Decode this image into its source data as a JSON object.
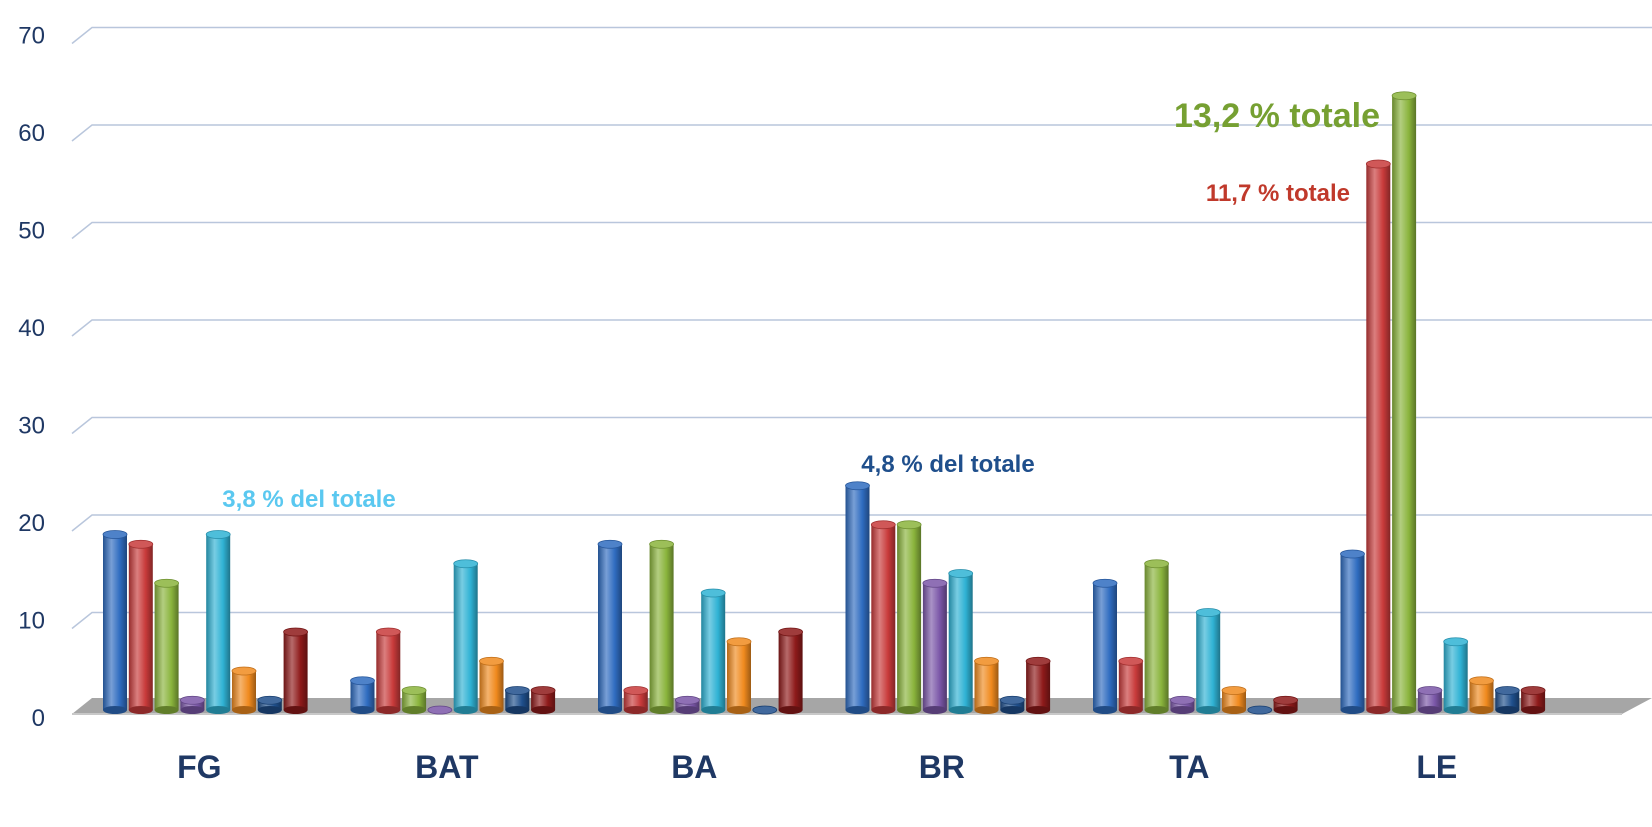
{
  "chart_data": {
    "type": "bar",
    "categories": [
      "FG",
      "BAT",
      "BA",
      "BR",
      "TA",
      "LE"
    ],
    "ylim": [
      0,
      70
    ],
    "yticks": [
      0,
      10,
      20,
      30,
      40,
      50,
      60,
      70
    ],
    "grid": true,
    "legend": "none",
    "series_colors": [
      "#2f6cc0",
      "#c83a3a",
      "#8ab43c",
      "#7b57a8",
      "#2fb2d4",
      "#f08a1e",
      "#1f4f8c",
      "#8e1a1a"
    ],
    "series": [
      {
        "values": [
          18,
          3,
          17,
          23,
          13,
          16
        ]
      },
      {
        "values": [
          17,
          8,
          2,
          19,
          5,
          56
        ]
      },
      {
        "values": [
          13,
          2,
          17,
          19,
          15,
          63
        ]
      },
      {
        "values": [
          1,
          0,
          1,
          13,
          1,
          2
        ]
      },
      {
        "values": [
          18,
          15,
          12,
          14,
          10,
          7
        ]
      },
      {
        "values": [
          4,
          5,
          7,
          5,
          2,
          3
        ]
      },
      {
        "values": [
          1,
          2,
          0,
          1,
          0,
          2
        ]
      },
      {
        "values": [
          8,
          2,
          8,
          5,
          1,
          2
        ]
      }
    ],
    "annotations": [
      {
        "text": "3,8 % del totale",
        "color": "#5ac8f0",
        "category": "FG",
        "value": 20.8
      },
      {
        "text": "4,8 % del totale",
        "color": "#1f4f8c",
        "category": "BR",
        "value": 24.4
      },
      {
        "text": "11,7 % totale",
        "color": "#c0392b",
        "category": "LE",
        "value": 52.2
      },
      {
        "text": "13,2 % totale",
        "color": "#76a032",
        "category": "LE",
        "value": 59.8
      }
    ]
  }
}
